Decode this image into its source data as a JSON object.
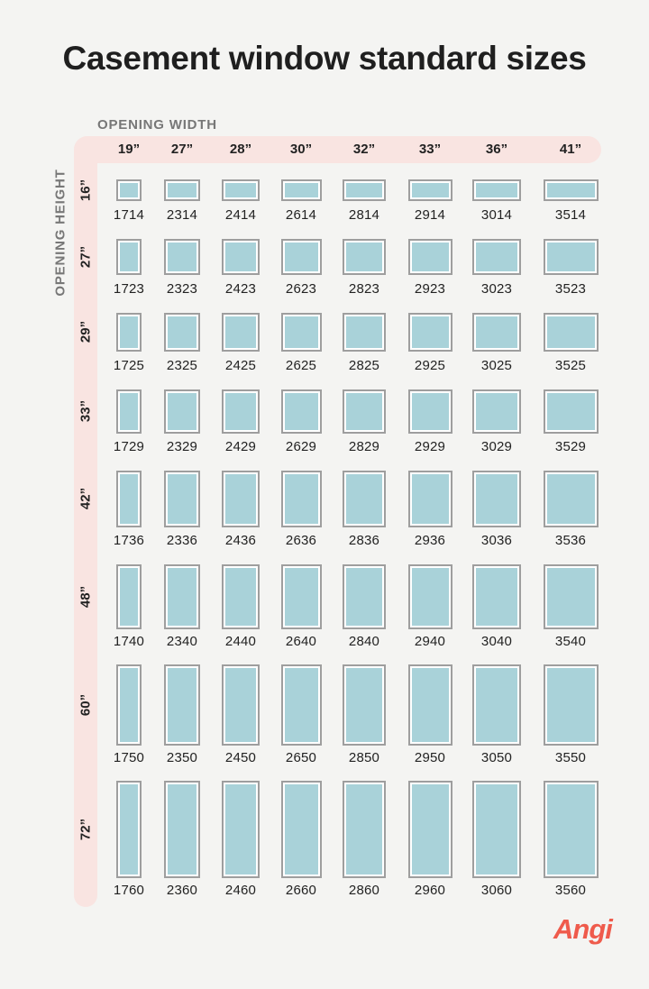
{
  "title": "Casement window standard sizes",
  "width_axis_label": "OPENING WIDTH",
  "height_axis_label": "OPENING HEIGHT",
  "widths": [
    "19”",
    "27”",
    "28”",
    "30”",
    "32”",
    "33”",
    "36”",
    "41”"
  ],
  "heights": [
    "16”",
    "27”",
    "29”",
    "33”",
    "42”",
    "48”",
    "60”",
    "72”"
  ],
  "codes": [
    [
      "1714",
      "2314",
      "2414",
      "2614",
      "2814",
      "2914",
      "3014",
      "3514"
    ],
    [
      "1723",
      "2323",
      "2423",
      "2623",
      "2823",
      "2923",
      "3023",
      "3523"
    ],
    [
      "1725",
      "2325",
      "2425",
      "2625",
      "2825",
      "2925",
      "3025",
      "3525"
    ],
    [
      "1729",
      "2329",
      "2429",
      "2629",
      "2829",
      "2929",
      "3029",
      "3529"
    ],
    [
      "1736",
      "2336",
      "2436",
      "2636",
      "2836",
      "2936",
      "3036",
      "3536"
    ],
    [
      "1740",
      "2340",
      "2440",
      "2640",
      "2840",
      "2940",
      "3040",
      "3540"
    ],
    [
      "1750",
      "2350",
      "2450",
      "2650",
      "2850",
      "2950",
      "3050",
      "3550"
    ],
    [
      "1760",
      "2360",
      "2460",
      "2660",
      "2860",
      "2960",
      "3060",
      "3560"
    ]
  ],
  "window_width_inches": [
    19,
    27,
    28,
    30,
    32,
    33,
    36,
    41
  ],
  "window_height_inches": [
    16,
    27,
    29,
    33,
    42,
    48,
    60,
    72
  ],
  "colors": {
    "background": "#f4f4f2",
    "band": "#f9e4e1",
    "glass": "#a9d2d9",
    "frame": "#9e9e9e",
    "brand": "#ef5b4c"
  },
  "brand": "Angi"
}
